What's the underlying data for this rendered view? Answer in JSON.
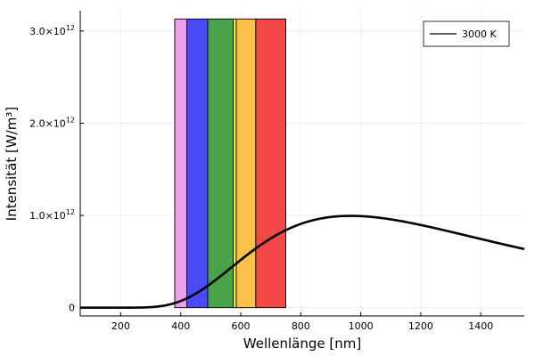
{
  "chart_data": {
    "type": "line",
    "title": "",
    "xlabel": "Wellenlänge [nm]",
    "ylabel": "Intensität [W/m³]",
    "xlim": [
      65,
      1545
    ],
    "ylim": [
      -90000000000.0,
      3220000000000.0
    ],
    "x_ticks": [
      {
        "value": 200,
        "label": "200"
      },
      {
        "value": 400,
        "label": "400"
      },
      {
        "value": 600,
        "label": "600"
      },
      {
        "value": 800,
        "label": "800"
      },
      {
        "value": 1000,
        "label": "1000"
      },
      {
        "value": 1200,
        "label": "1200"
      },
      {
        "value": 1400,
        "label": "1400"
      }
    ],
    "y_ticks": [
      {
        "value": 0,
        "label": "0",
        "exp": ""
      },
      {
        "value": 1000000000000.0,
        "label": "1.0×10",
        "exp": "12"
      },
      {
        "value": 2000000000000.0,
        "label": "2.0×10",
        "exp": "12"
      },
      {
        "value": 3000000000000.0,
        "label": "3.0×10",
        "exp": "12"
      }
    ],
    "grid": true,
    "legend": {
      "position": "top-right",
      "entries": [
        {
          "label": "3000 K",
          "color": "#000000"
        }
      ]
    },
    "series": [
      {
        "name": "3000 K",
        "color": "#000000",
        "line_width": 2.6,
        "function": "planck",
        "temperature": 3000,
        "x_range": [
          65,
          1545
        ]
      }
    ],
    "spectrum_bands": [
      {
        "x_start": 380,
        "x_end": 420,
        "color": "#eaa0ea"
      },
      {
        "x_start": 420,
        "x_end": 490,
        "color": "#4a4af8"
      },
      {
        "x_start": 490,
        "x_end": 575,
        "color": "#4aa24a"
      },
      {
        "x_start": 575,
        "x_end": 585,
        "color": "#f0f050"
      },
      {
        "x_start": 585,
        "x_end": 650,
        "color": "#fbbf4a"
      },
      {
        "x_start": 650,
        "x_end": 750,
        "color": "#f44848"
      }
    ],
    "bands_top": 3130000000000.0
  }
}
